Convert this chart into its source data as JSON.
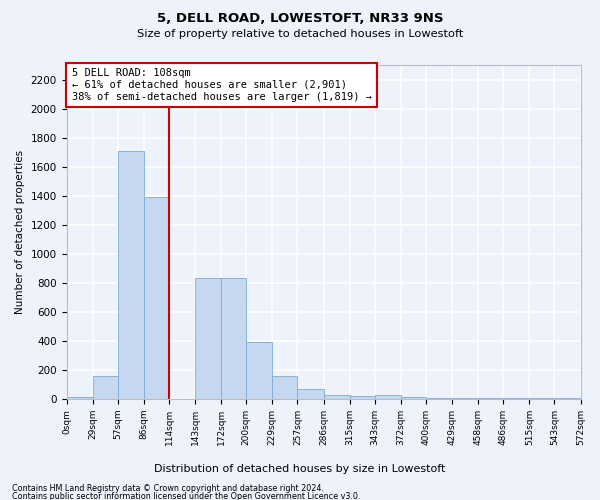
{
  "title": "5, DELL ROAD, LOWESTOFT, NR33 9NS",
  "subtitle": "Size of property relative to detached houses in Lowestoft",
  "xlabel": "Distribution of detached houses by size in Lowestoft",
  "ylabel": "Number of detached properties",
  "bar_values": [
    10,
    155,
    1710,
    1390,
    0,
    835,
    835,
    390,
    160,
    65,
    25,
    20,
    30,
    10,
    5,
    5,
    5,
    5,
    5,
    5
  ],
  "bin_edges": [
    0,
    29,
    57,
    86,
    114,
    143,
    172,
    200,
    229,
    257,
    286,
    315,
    343,
    372,
    400,
    429,
    458,
    486,
    515,
    543,
    572
  ],
  "tick_labels": [
    "0sqm",
    "29sqm",
    "57sqm",
    "86sqm",
    "114sqm",
    "143sqm",
    "172sqm",
    "200sqm",
    "229sqm",
    "257sqm",
    "286sqm",
    "315sqm",
    "343sqm",
    "372sqm",
    "400sqm",
    "429sqm",
    "458sqm",
    "486sqm",
    "515sqm",
    "543sqm",
    "572sqm"
  ],
  "vline_x": 114,
  "bar_color": "#c5d8f0",
  "bar_edge_color": "#7badd4",
  "vline_color": "#cc0000",
  "annotation_text": "5 DELL ROAD: 108sqm\n← 61% of detached houses are smaller (2,901)\n38% of semi-detached houses are larger (1,819) →",
  "annotation_box_color": "white",
  "annotation_box_edgecolor": "#cc0000",
  "ylim": [
    0,
    2300
  ],
  "yticks": [
    0,
    200,
    400,
    600,
    800,
    1000,
    1200,
    1400,
    1600,
    1800,
    2000,
    2200
  ],
  "footer_line1": "Contains HM Land Registry data © Crown copyright and database right 2024.",
  "footer_line2": "Contains public sector information licensed under the Open Government Licence v3.0.",
  "background_color": "#eef2fa",
  "grid_color": "white"
}
